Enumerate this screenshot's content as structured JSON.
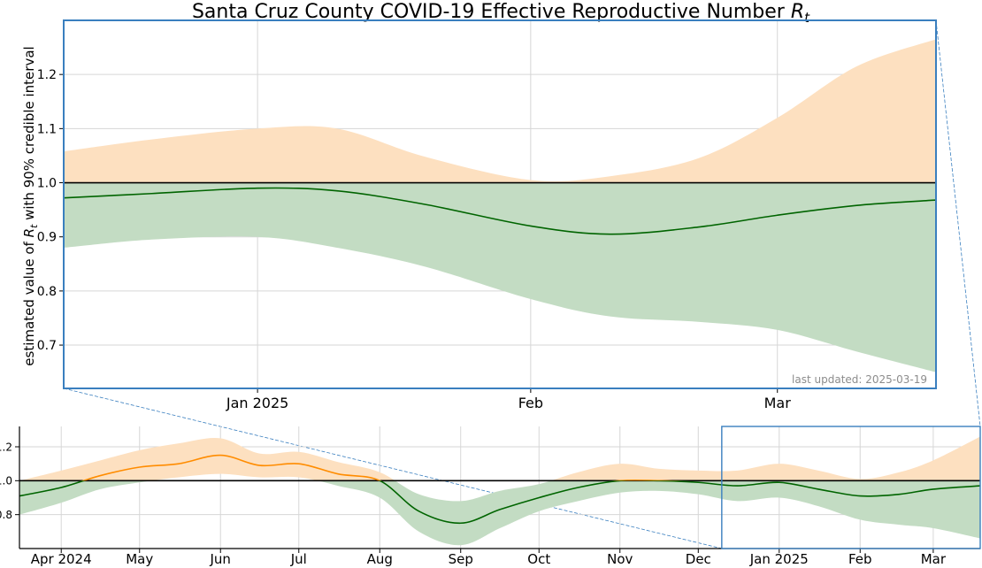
{
  "chart_data": {
    "type": "area",
    "title": "Santa Cruz County COVID-19 Effective Reproductive Number ",
    "title_symbol": "R",
    "title_subscript": "t",
    "colors": {
      "above_fill": "#fde0c0",
      "below_fill": "#c3dcc3",
      "above_line": "#ff8c00",
      "below_line": "#006400",
      "reference_line": "#000000",
      "frame": "#3a7fbf",
      "grid": "#d6d6d6",
      "note": "#8c8c8c"
    },
    "reference_value": 1.0,
    "grid": true,
    "main": {
      "ylabel_prefix": "estimated value of ",
      "ylabel_symbol": "R",
      "ylabel_subscript": "t",
      "ylabel_suffix": " with 90% credible interval",
      "x_range": [
        "2024-12-10",
        "2025-03-19"
      ],
      "ylim": [
        0.62,
        1.3
      ],
      "y_ticks": [
        0.7,
        0.8,
        0.9,
        1.0,
        1.1,
        1.2
      ],
      "y_tick_labels": [
        "0.7",
        "0.8",
        "0.9",
        "1.0",
        "1.1",
        "1.2"
      ],
      "x_ticks": [
        "2025-01-01",
        "2025-02-01",
        "2025-03-01"
      ],
      "x_tick_labels": [
        "Jan 2025",
        "Feb",
        "Mar"
      ],
      "annotation": "last updated: 2025-03-19",
      "dates": [
        "2024-12-10",
        "2024-12-20",
        "2025-01-01",
        "2025-01-10",
        "2025-01-20",
        "2025-02-01",
        "2025-02-10",
        "2025-02-20",
        "2025-03-01",
        "2025-03-10",
        "2025-03-19"
      ],
      "rt": [
        0.972,
        0.98,
        0.99,
        0.985,
        0.96,
        0.92,
        0.905,
        0.918,
        0.94,
        0.958,
        0.968
      ],
      "lower": [
        0.88,
        0.895,
        0.9,
        0.88,
        0.845,
        0.785,
        0.753,
        0.743,
        0.728,
        0.688,
        0.65
      ],
      "upper": [
        1.058,
        1.08,
        1.1,
        1.1,
        1.048,
        1.005,
        1.012,
        1.045,
        1.12,
        1.215,
        1.265
      ]
    },
    "overview": {
      "x_range": [
        "2024-03-16",
        "2025-03-19"
      ],
      "ylim": [
        0.6,
        1.32
      ],
      "y_ticks": [
        0.8,
        1.0,
        1.2
      ],
      "y_tick_labels": [
        "0.8",
        "1.0",
        "1.2"
      ],
      "x_ticks": [
        "2024-04-01",
        "2024-05-01",
        "2024-06-01",
        "2024-07-01",
        "2024-08-01",
        "2024-09-01",
        "2024-10-01",
        "2024-11-01",
        "2024-12-01",
        "2025-01-01",
        "2025-02-01",
        "2025-03-01"
      ],
      "x_tick_labels": [
        "Apr 2024",
        "May",
        "Jun",
        "Jul",
        "Aug",
        "Sep",
        "Oct",
        "Nov",
        "Dec",
        "Jan 2025",
        "Feb",
        "Mar"
      ],
      "dates": [
        "2024-03-16",
        "2024-04-01",
        "2024-04-16",
        "2024-05-01",
        "2024-05-16",
        "2024-06-01",
        "2024-06-16",
        "2024-07-01",
        "2024-07-16",
        "2024-08-01",
        "2024-08-16",
        "2024-09-01",
        "2024-09-16",
        "2024-10-01",
        "2024-10-16",
        "2024-11-01",
        "2024-11-16",
        "2024-12-01",
        "2024-12-16",
        "2025-01-01",
        "2025-01-16",
        "2025-02-01",
        "2025-02-16",
        "2025-03-01",
        "2025-03-19"
      ],
      "rt": [
        0.91,
        0.96,
        1.03,
        1.08,
        1.1,
        1.15,
        1.09,
        1.1,
        1.04,
        1.0,
        0.82,
        0.75,
        0.83,
        0.9,
        0.96,
        1.0,
        1.0,
        0.99,
        0.97,
        0.99,
        0.95,
        0.91,
        0.92,
        0.95,
        0.97
      ],
      "lower": [
        0.8,
        0.87,
        0.95,
        0.99,
        1.02,
        1.04,
        1.02,
        1.02,
        0.97,
        0.9,
        0.7,
        0.62,
        0.72,
        0.82,
        0.88,
        0.93,
        0.94,
        0.92,
        0.88,
        0.9,
        0.85,
        0.77,
        0.74,
        0.72,
        0.66
      ],
      "upper": [
        1.0,
        1.06,
        1.12,
        1.18,
        1.22,
        1.25,
        1.16,
        1.17,
        1.11,
        1.05,
        0.92,
        0.88,
        0.94,
        0.98,
        1.05,
        1.1,
        1.07,
        1.06,
        1.06,
        1.1,
        1.06,
        1.01,
        1.05,
        1.12,
        1.26
      ]
    }
  }
}
